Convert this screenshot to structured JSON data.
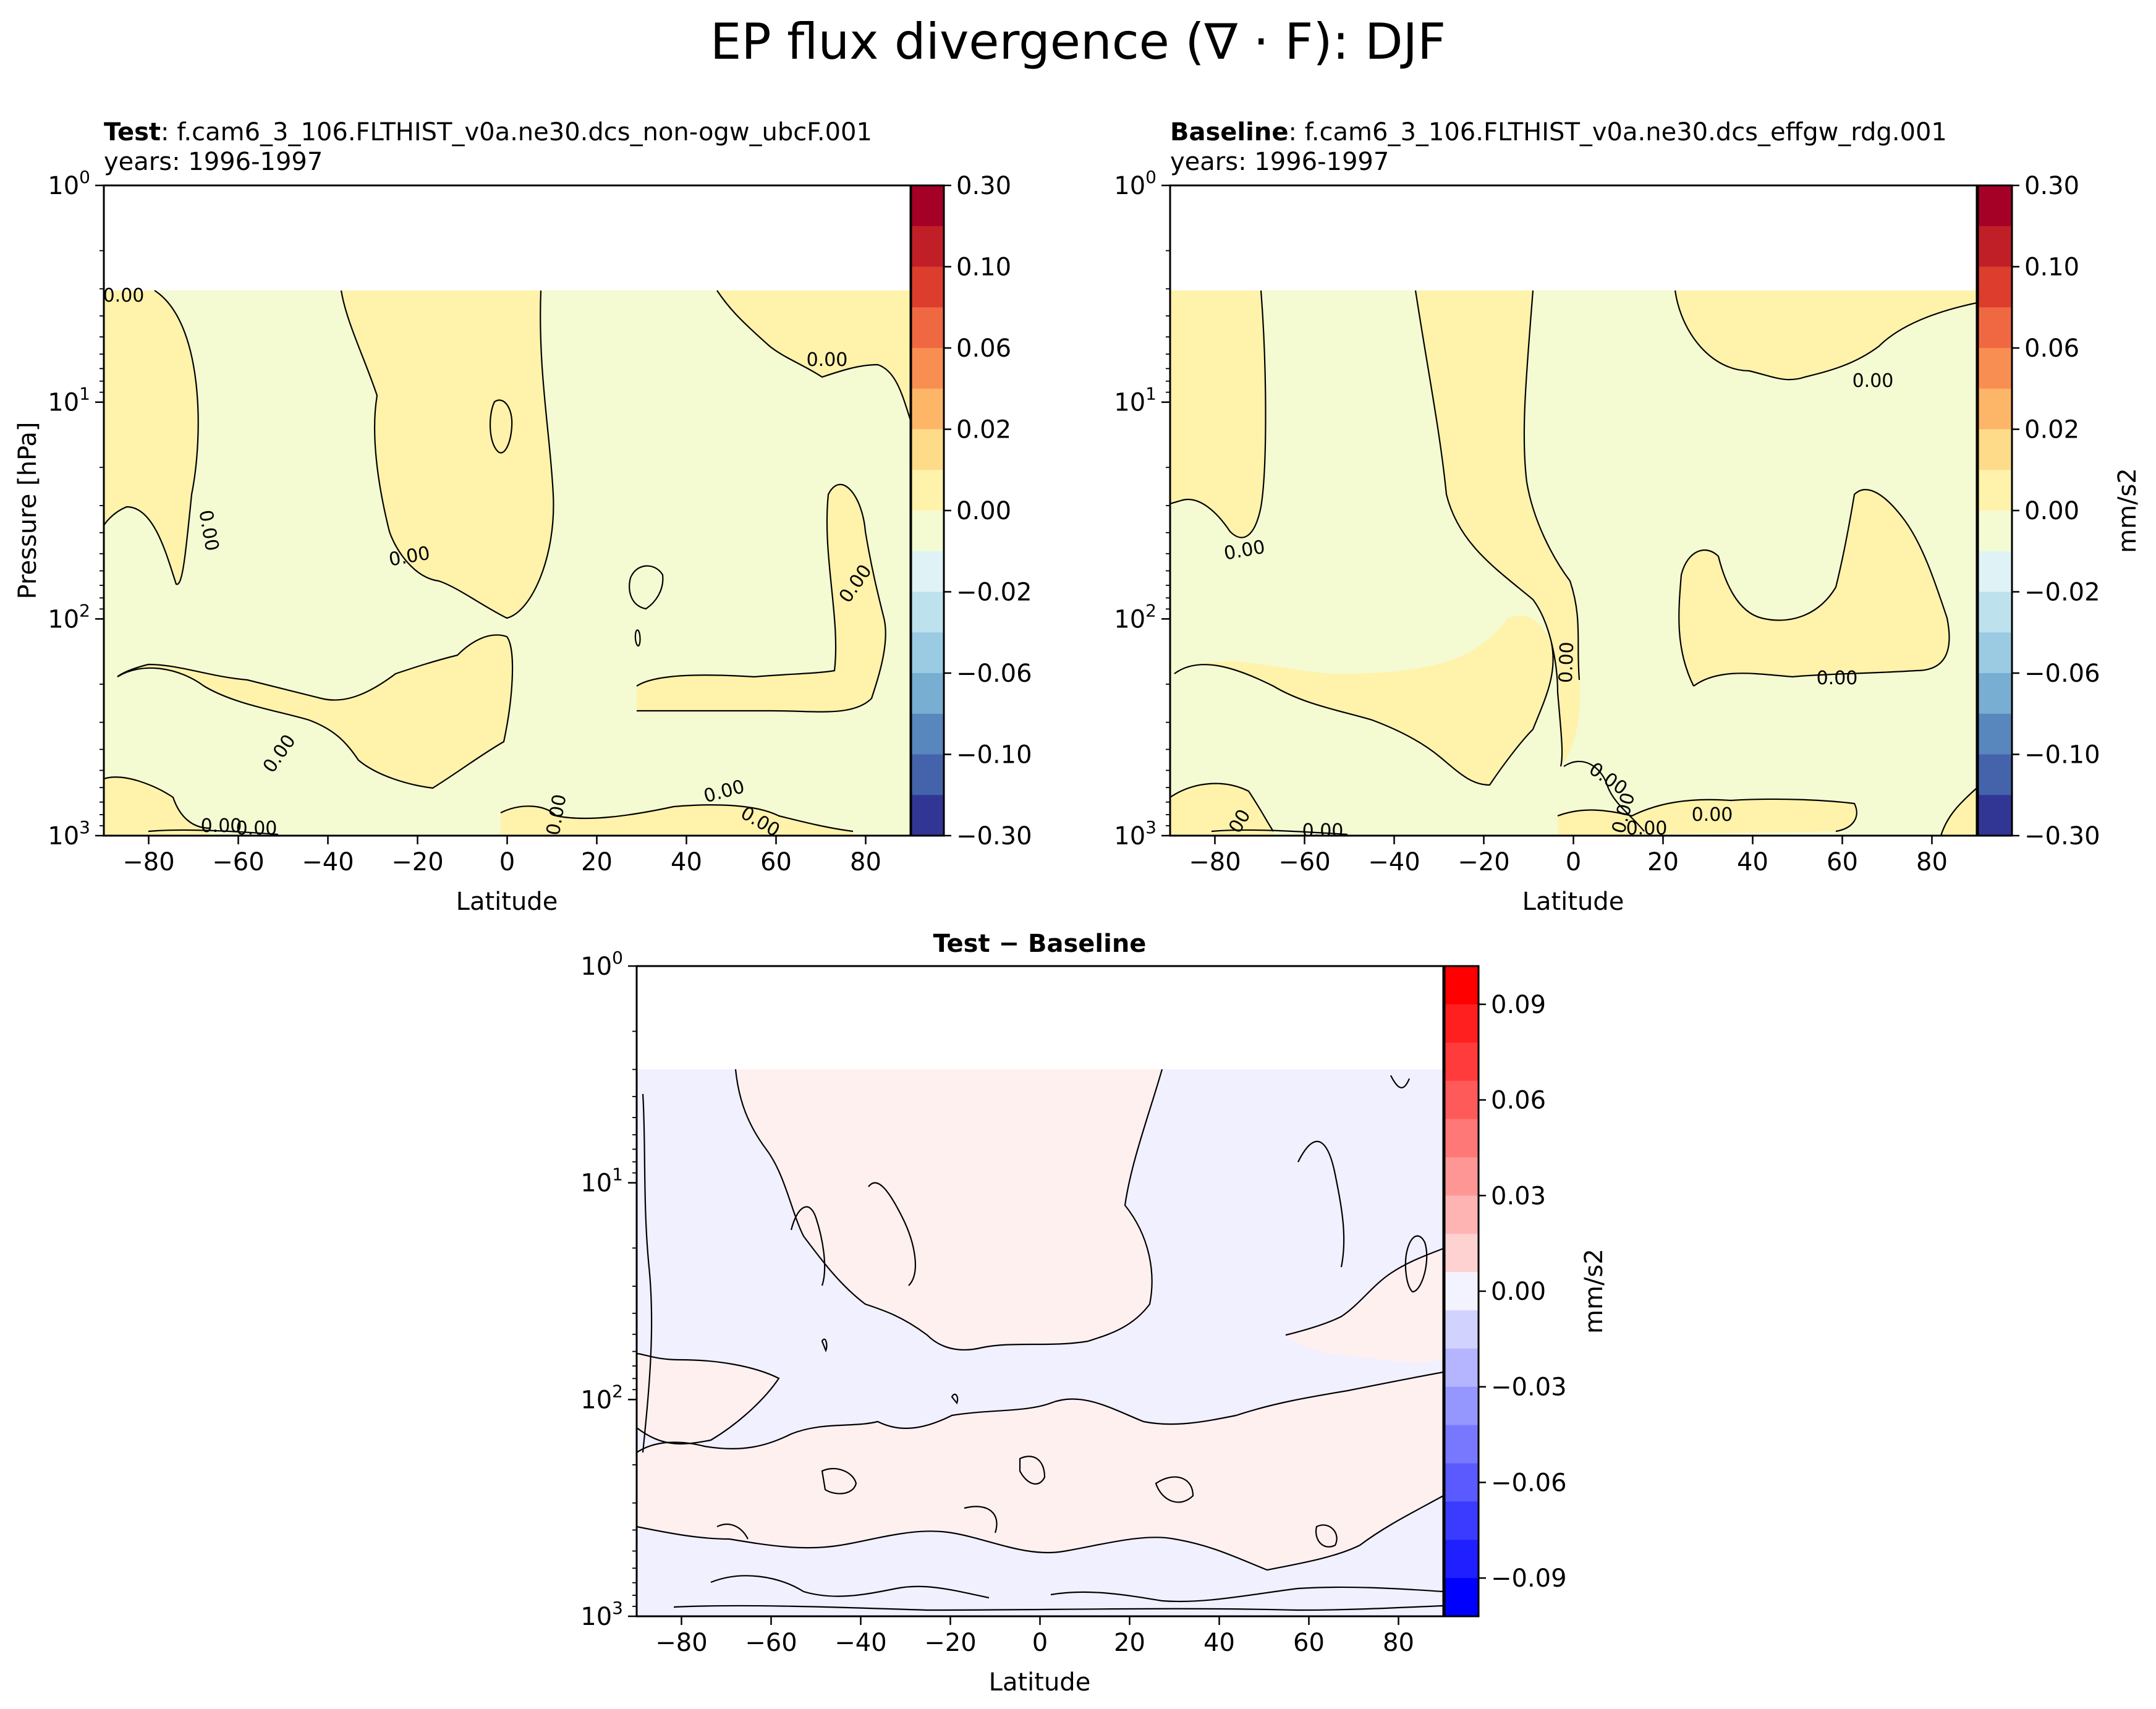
{
  "chart_data": [
    {
      "type": "contour",
      "id": "test",
      "suptitle": "EP flux divergence (∇ · F): DJF",
      "title_bold": "Test",
      "title_rest": ": f.cam6_3_106.FLTHIST_v0a.ne30.dcs_non-ogw_ubcF.001",
      "subtitle": "years: 1996-1997",
      "xlabel": "Latitude",
      "ylabel": "Pressure [hPa]",
      "xlim": [
        -90,
        90
      ],
      "xticks": [
        "−80",
        "−60",
        "−40",
        "−20",
        "0",
        "20",
        "40",
        "60",
        "80"
      ],
      "yscale": "log",
      "ylim": [
        1000,
        1
      ],
      "yticks": [
        {
          "base": "10",
          "exp": "0"
        },
        {
          "base": "10",
          "exp": "1"
        },
        {
          "base": "10",
          "exp": "2"
        },
        {
          "base": "10",
          "exp": "3"
        }
      ],
      "data_top_hpa": 3,
      "contour_labels": [
        "0.00",
        "0.00",
        "0.00",
        "0.00",
        "0.00",
        "0.00",
        "0.00",
        "0.00",
        "0.00",
        "0.00",
        "0.00"
      ],
      "colorbar": {
        "cmap": "RdYlBu_r",
        "ticks": [
          "0.30",
          "0.10",
          "0.06",
          "0.02",
          "0.00",
          "−0.02",
          "−0.06",
          "−0.10",
          "−0.30"
        ],
        "label": "",
        "colors": [
          "#a50026",
          "#c11f27",
          "#dc3d2d",
          "#ef6842",
          "#f98e52",
          "#fdb567",
          "#fedb89",
          "#fff2ab",
          "#f4fad2",
          "#dff3f7",
          "#bde2ee",
          "#9acbe2",
          "#78aed2",
          "#5887be",
          "#4463ab",
          "#313695"
        ]
      }
    },
    {
      "type": "contour",
      "id": "baseline",
      "title_bold": "Baseline",
      "title_rest": ": f.cam6_3_106.FLTHIST_v0a.ne30.dcs_effgw_rdg.001",
      "subtitle": "years: 1996-1997",
      "xlabel": "Latitude",
      "xlim": [
        -90,
        90
      ],
      "xticks": [
        "−80",
        "−60",
        "−40",
        "−20",
        "0",
        "20",
        "40",
        "60",
        "80"
      ],
      "yscale": "log",
      "ylim": [
        1000,
        1
      ],
      "yticks": [
        {
          "base": "10",
          "exp": "0"
        },
        {
          "base": "10",
          "exp": "1"
        },
        {
          "base": "10",
          "exp": "2"
        },
        {
          "base": "10",
          "exp": "3"
        }
      ],
      "data_top_hpa": 3,
      "contour_labels": [
        "0.00",
        "0.00",
        "0.00",
        "0.00",
        "0.00",
        "0.00",
        "0.00",
        "0.00",
        "0.00",
        "0.00"
      ],
      "colorbar": {
        "cmap": "RdYlBu_r",
        "ticks": [
          "0.30",
          "0.10",
          "0.06",
          "0.02",
          "0.00",
          "−0.02",
          "−0.06",
          "−0.10",
          "−0.30"
        ],
        "label": "mm/s2",
        "colors": [
          "#a50026",
          "#c11f27",
          "#dc3d2d",
          "#ef6842",
          "#f98e52",
          "#fdb567",
          "#fedb89",
          "#fff2ab",
          "#f4fad2",
          "#dff3f7",
          "#bde2ee",
          "#9acbe2",
          "#78aed2",
          "#5887be",
          "#4463ab",
          "#313695"
        ]
      }
    },
    {
      "type": "contour",
      "id": "diff",
      "title_bold": "Test − Baseline",
      "xlabel": "Latitude",
      "xlim": [
        -90,
        90
      ],
      "xticks": [
        "−80",
        "−60",
        "−40",
        "−20",
        "0",
        "20",
        "40",
        "60",
        "80"
      ],
      "yscale": "log",
      "ylim": [
        1000,
        1
      ],
      "yticks": [
        {
          "base": "10",
          "exp": "0"
        },
        {
          "base": "10",
          "exp": "1"
        },
        {
          "base": "10",
          "exp": "2"
        },
        {
          "base": "10",
          "exp": "3"
        }
      ],
      "data_top_hpa": 3,
      "colorbar": {
        "cmap": "bwr",
        "ticks": [
          "0.09",
          "0.06",
          "0.03",
          "0.00",
          "−0.03",
          "−0.06",
          "−0.09"
        ],
        "label": "mm/s2",
        "colors": [
          "#ff0000",
          "#ff1f1f",
          "#ff3b3b",
          "#ff5a5a",
          "#ff7878",
          "#ff9696",
          "#ffb4b4",
          "#ffd2d2",
          "#f3f3ff",
          "#d2d2ff",
          "#b4b4ff",
          "#9696ff",
          "#7878ff",
          "#5a5aff",
          "#3b3bff",
          "#1f1fff",
          "#0000ff"
        ]
      }
    }
  ]
}
